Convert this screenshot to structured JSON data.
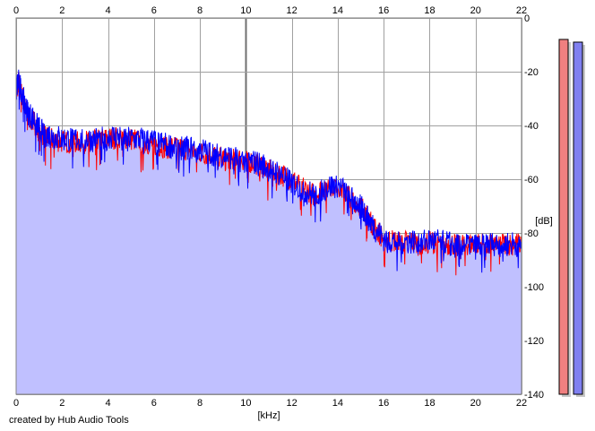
{
  "chart_data": {
    "type": "area",
    "title": "",
    "xlabel": "[kHz]",
    "ylabel": "[dB]",
    "xlim": [
      0,
      22
    ],
    "ylim": [
      -140,
      0
    ],
    "x_ticks": [
      0,
      2,
      4,
      6,
      8,
      10,
      12,
      14,
      16,
      18,
      20,
      22
    ],
    "y_ticks": [
      0,
      -20,
      -40,
      -60,
      -80,
      -100,
      -120,
      -140
    ],
    "grid": true,
    "x_axis_position": "top and bottom",
    "y_axis_position": "right",
    "series": [
      {
        "color": "#ff0000",
        "x": [
          0,
          0.1,
          0.3,
          0.5,
          0.8,
          1,
          1.3,
          1.6,
          2,
          2.5,
          3,
          3.5,
          4,
          4.5,
          5,
          5.5,
          6,
          6.5,
          7,
          7.5,
          8,
          8.5,
          9,
          9.5,
          10,
          10.5,
          11,
          11.5,
          12,
          12.5,
          13,
          13.5,
          14,
          14.5,
          15,
          15.3,
          15.6,
          16,
          16.5,
          17,
          17.5,
          18,
          18.5,
          19,
          19.5,
          20,
          20.5,
          21,
          21.5,
          22
        ],
        "values": [
          -28,
          -24,
          -30,
          -36,
          -39,
          -42,
          -44,
          -45,
          -46,
          -46,
          -46,
          -45,
          -45,
          -44,
          -45,
          -46,
          -47,
          -48,
          -48,
          -49,
          -50,
          -51,
          -52,
          -52,
          -53,
          -54,
          -56,
          -58,
          -60,
          -63,
          -66,
          -62,
          -62,
          -66,
          -70,
          -73,
          -78,
          -82,
          -83,
          -83,
          -84,
          -83,
          -84,
          -84,
          -84,
          -84,
          -84,
          -84,
          -84,
          -84
        ]
      },
      {
        "color": "#0000ff",
        "x": [
          0,
          0.1,
          0.3,
          0.5,
          0.8,
          1,
          1.3,
          1.6,
          2,
          2.5,
          3,
          3.5,
          4,
          4.5,
          5,
          5.5,
          6,
          6.5,
          7,
          7.5,
          8,
          8.5,
          9,
          9.5,
          10,
          10.5,
          11,
          11.5,
          12,
          12.5,
          13,
          13.5,
          14,
          14.5,
          15,
          15.3,
          15.6,
          16,
          16.5,
          17,
          17.5,
          18,
          18.5,
          19,
          19.5,
          20,
          20.5,
          21,
          21.5,
          22
        ],
        "values": [
          -27,
          -23,
          -29,
          -35,
          -38,
          -41,
          -43,
          -44,
          -45,
          -45,
          -45,
          -45,
          -44,
          -44,
          -45,
          -45,
          -46,
          -47,
          -48,
          -48,
          -49,
          -50,
          -51,
          -52,
          -53,
          -54,
          -56,
          -58,
          -61,
          -64,
          -66,
          -63,
          -62,
          -66,
          -70,
          -74,
          -78,
          -82,
          -83,
          -83,
          -83,
          -83,
          -83,
          -84,
          -84,
          -85,
          -84,
          -84,
          -84,
          -84
        ]
      }
    ],
    "fill_color": "#c0c0ff",
    "meters": [
      {
        "color": "#f08080",
        "level_db": -8
      },
      {
        "color": "#8080f0",
        "level_db": -9
      }
    ]
  },
  "footer": {
    "credit": "created by Hub Audio Tools"
  }
}
